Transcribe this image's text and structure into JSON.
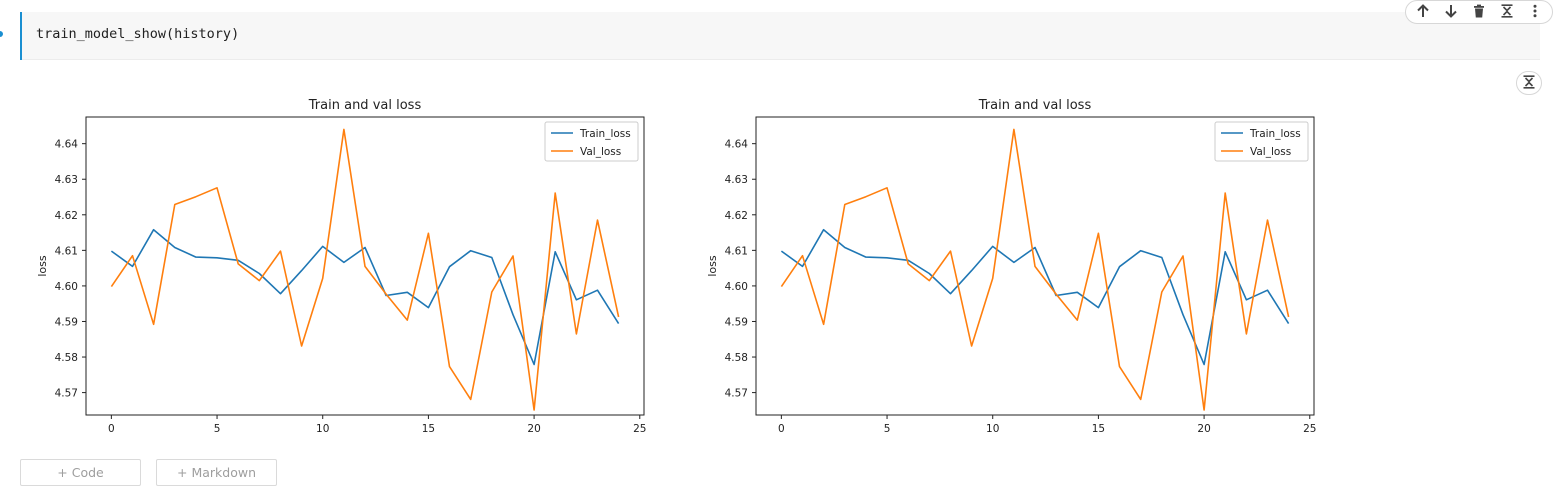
{
  "cell": {
    "code": "train_model_show(history)"
  },
  "toolbar": {
    "buttons": [
      {
        "name": "move-up-button",
        "icon": "arrow-up-icon"
      },
      {
        "name": "move-down-button",
        "icon": "arrow-down-icon"
      },
      {
        "name": "delete-button",
        "icon": "trash-icon"
      },
      {
        "name": "collapse-button",
        "icon": "collapse-icon"
      },
      {
        "name": "more-options-button",
        "icon": "more-vertical-icon"
      }
    ]
  },
  "output": {
    "collapse_icon": "collapse-icon"
  },
  "add_cell": {
    "code_label": "+ Code",
    "markdown_label": "+ Markdown"
  },
  "colors": {
    "accent": "#1a8fd1",
    "train": "#1f77b4",
    "val": "#ff7f0e"
  },
  "chart_data": [
    {
      "type": "line",
      "title": "Train and val loss",
      "xlabel": "",
      "ylabel": "loss",
      "xlim": [
        -1.2,
        25.2
      ],
      "ylim": [
        4.5637,
        4.6475
      ],
      "xticks": [
        0,
        5,
        10,
        15,
        20,
        25
      ],
      "yticks": [
        4.57,
        4.58,
        4.59,
        4.6,
        4.61,
        4.62,
        4.63,
        4.64
      ],
      "ytick_labels": [
        "4.57",
        "4.58",
        "4.59",
        "4.60",
        "4.61",
        "4.62",
        "4.63",
        "4.64"
      ],
      "grid": false,
      "legend_position": "top-right",
      "x": [
        0,
        1,
        2,
        3,
        4,
        5,
        6,
        7,
        8,
        9,
        10,
        11,
        12,
        13,
        14,
        15,
        16,
        17,
        18,
        19,
        20,
        21,
        22,
        23,
        24
      ],
      "series": [
        {
          "name": "Train_loss",
          "color": "#1f77b4",
          "values": [
            4.6098,
            4.6055,
            4.6158,
            4.6108,
            4.6081,
            4.6079,
            4.6072,
            4.6035,
            4.5978,
            4.6043,
            4.6111,
            4.6066,
            4.6108,
            4.5973,
            4.5982,
            4.5939,
            4.6054,
            4.6099,
            4.608,
            4.5919,
            4.5779,
            4.6096,
            4.5961,
            4.5988,
            4.5894
          ]
        },
        {
          "name": "Val_loss",
          "color": "#ff7f0e",
          "values": [
            4.5998,
            4.6085,
            4.5892,
            4.6229,
            4.6251,
            4.6276,
            4.6062,
            4.6015,
            4.6098,
            4.5831,
            4.6021,
            4.644,
            4.6055,
            4.5977,
            4.5904,
            4.6148,
            4.5773,
            4.5681,
            4.5983,
            4.6084,
            4.5651,
            4.6261,
            4.5865,
            4.6185,
            4.5913
          ]
        }
      ]
    },
    {
      "type": "line",
      "title": "Train and val loss",
      "xlabel": "",
      "ylabel": "loss",
      "xlim": [
        -1.2,
        25.2
      ],
      "ylim": [
        4.5637,
        4.6475
      ],
      "xticks": [
        0,
        5,
        10,
        15,
        20,
        25
      ],
      "yticks": [
        4.57,
        4.58,
        4.59,
        4.6,
        4.61,
        4.62,
        4.63,
        4.64
      ],
      "ytick_labels": [
        "4.57",
        "4.58",
        "4.59",
        "4.60",
        "4.61",
        "4.62",
        "4.63",
        "4.64"
      ],
      "grid": false,
      "legend_position": "top-right",
      "x": [
        0,
        1,
        2,
        3,
        4,
        5,
        6,
        7,
        8,
        9,
        10,
        11,
        12,
        13,
        14,
        15,
        16,
        17,
        18,
        19,
        20,
        21,
        22,
        23,
        24
      ],
      "series": [
        {
          "name": "Train_loss",
          "color": "#1f77b4",
          "values": [
            4.6098,
            4.6055,
            4.6158,
            4.6108,
            4.6081,
            4.6079,
            4.6072,
            4.6035,
            4.5978,
            4.6043,
            4.6111,
            4.6066,
            4.6108,
            4.5973,
            4.5982,
            4.5939,
            4.6054,
            4.6099,
            4.608,
            4.5919,
            4.5779,
            4.6096,
            4.5961,
            4.5988,
            4.5894
          ]
        },
        {
          "name": "Val_loss",
          "color": "#ff7f0e",
          "values": [
            4.5998,
            4.6085,
            4.5892,
            4.6229,
            4.6251,
            4.6276,
            4.6062,
            4.6015,
            4.6098,
            4.5831,
            4.6021,
            4.644,
            4.6055,
            4.5977,
            4.5904,
            4.6148,
            4.5773,
            4.5681,
            4.5983,
            4.6084,
            4.5651,
            4.6261,
            4.5865,
            4.6185,
            4.5913
          ]
        }
      ]
    }
  ]
}
